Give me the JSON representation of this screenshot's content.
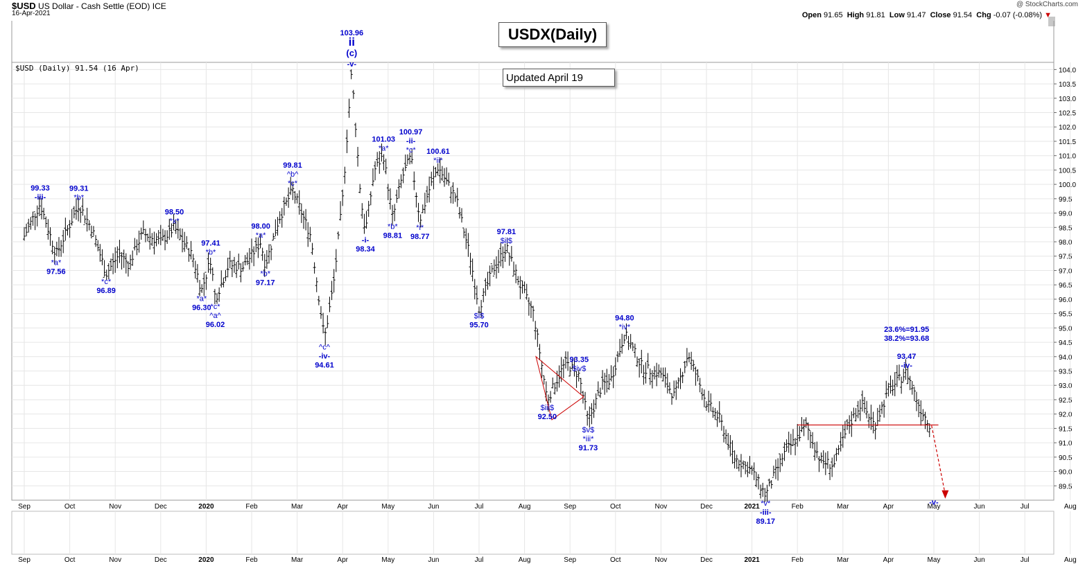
{
  "header": {
    "symbol": "$USD",
    "name": "US Dollar - Cash Settle (EOD)",
    "exchange": "ICE",
    "date": "16-Apr-2021",
    "ohlc": {
      "open_label": "Open",
      "open": "91.65",
      "high_label": "High",
      "high": "91.81",
      "low_label": "Low",
      "low": "91.47",
      "close_label": "Close",
      "close": "91.54",
      "chg_label": "Chg",
      "chg": "-0.07 (-0.08%)"
    },
    "brand": "@ StockCharts.com"
  },
  "legend": {
    "text": "$USD (Daily) 91.54 (16 Apr)"
  },
  "boxes": {
    "title": "USDX(Daily)",
    "updated": "Updated April 19"
  },
  "colors": {
    "annotation": "#0000cc",
    "bars": "#000000",
    "line": "#cc0000",
    "grid": "#e6e6e6"
  },
  "chart_data": {
    "type": "line",
    "title": "USDX(Daily)",
    "price_axis": {
      "ylim": [
        89.0,
        104.25
      ],
      "ticks": [
        "89.5",
        "90.0",
        "90.5",
        "91.0",
        "91.5",
        "92.0",
        "92.5",
        "93.0",
        "93.5",
        "94.0",
        "94.5",
        "95.0",
        "95.5",
        "96.0",
        "96.5",
        "97.0",
        "97.5",
        "98.0",
        "98.5",
        "99.0",
        "99.5",
        "100.0",
        "100.5",
        "101.0",
        "101.5",
        "102.0",
        "102.5",
        "103.0",
        "103.5",
        "104.0"
      ]
    },
    "time_axis": {
      "labels": [
        "Sep",
        "Oct",
        "Nov",
        "Dec",
        "2020",
        "Feb",
        "Mar",
        "Apr",
        "May",
        "Jun",
        "Jul",
        "Aug",
        "Sep",
        "Oct",
        "Nov",
        "Dec",
        "2021",
        "Feb",
        "Mar",
        "Apr",
        "May",
        "Jun",
        "Jul",
        "Aug"
      ],
      "bold": [
        "2020",
        "2021"
      ],
      "months_numeric": [
        0,
        1,
        2,
        3,
        4,
        5,
        6,
        7,
        8,
        9,
        10,
        11,
        12,
        13,
        14,
        15,
        16,
        17,
        18,
        19,
        20,
        21,
        22,
        23
      ]
    },
    "series": [
      {
        "values_monthly_path": [
          [
            0.0,
            98.2
          ],
          [
            0.35,
            99.33
          ],
          [
            0.7,
            97.56
          ],
          [
            1.0,
            98.6
          ],
          [
            1.2,
            99.31
          ],
          [
            1.5,
            98.4
          ],
          [
            1.8,
            96.89
          ],
          [
            2.1,
            97.6
          ],
          [
            2.3,
            97.2
          ],
          [
            2.6,
            98.3
          ],
          [
            3.0,
            98.0
          ],
          [
            3.3,
            98.5
          ],
          [
            3.7,
            97.5
          ],
          [
            3.9,
            96.3
          ],
          [
            4.1,
            97.41
          ],
          [
            4.2,
            96.02
          ],
          [
            4.5,
            97.2
          ],
          [
            4.8,
            97.1
          ],
          [
            5.2,
            98.0
          ],
          [
            5.3,
            97.17
          ],
          [
            5.6,
            98.8
          ],
          [
            5.9,
            99.81
          ],
          [
            6.3,
            98.2
          ],
          [
            6.6,
            94.61
          ],
          [
            6.8,
            96.5
          ],
          [
            7.0,
            99.5
          ],
          [
            7.2,
            103.96
          ],
          [
            7.4,
            99.5
          ],
          [
            7.5,
            98.34
          ],
          [
            7.7,
            100.5
          ],
          [
            7.9,
            101.03
          ],
          [
            8.1,
            98.81
          ],
          [
            8.3,
            100.2
          ],
          [
            8.5,
            100.97
          ],
          [
            8.7,
            98.77
          ],
          [
            8.9,
            99.8
          ],
          [
            9.1,
            100.61
          ],
          [
            9.5,
            99.5
          ],
          [
            9.8,
            97.5
          ],
          [
            10.0,
            95.7
          ],
          [
            10.3,
            97.0
          ],
          [
            10.6,
            97.81
          ],
          [
            10.9,
            96.5
          ],
          [
            11.2,
            95.5
          ],
          [
            11.5,
            92.5
          ],
          [
            11.9,
            93.8
          ],
          [
            12.2,
            93.35
          ],
          [
            12.4,
            91.73
          ],
          [
            12.7,
            93.0
          ],
          [
            12.9,
            93.2
          ],
          [
            13.2,
            94.8
          ],
          [
            13.6,
            93.6
          ],
          [
            14.0,
            93.4
          ],
          [
            14.3,
            92.6
          ],
          [
            14.6,
            94.1
          ],
          [
            15.0,
            92.4
          ],
          [
            15.3,
            91.8
          ],
          [
            15.6,
            90.5
          ],
          [
            16.0,
            90.0
          ],
          [
            16.3,
            89.17
          ],
          [
            16.7,
            90.6
          ],
          [
            17.2,
            91.6
          ],
          [
            17.5,
            90.4
          ],
          [
            17.8,
            90.2
          ],
          [
            18.1,
            91.5
          ],
          [
            18.4,
            92.4
          ],
          [
            18.7,
            91.6
          ],
          [
            19.0,
            92.8
          ],
          [
            19.4,
            93.47
          ],
          [
            19.7,
            92.2
          ],
          [
            19.95,
            91.54
          ]
        ]
      }
    ],
    "annotations": [
      {
        "t": 0.35,
        "y": 99.33,
        "lines": [
          "99.33",
          "-iii-"
        ],
        "pos": "above"
      },
      {
        "t": 0.7,
        "y": 97.56,
        "lines": [
          "*a*",
          "97.56"
        ],
        "pos": "below"
      },
      {
        "t": 1.2,
        "y": 99.31,
        "lines": [
          "99.31",
          "*b*"
        ],
        "pos": "above"
      },
      {
        "t": 1.8,
        "y": 96.89,
        "lines": [
          "*c*",
          "96.89"
        ],
        "pos": "below"
      },
      {
        "t": 3.3,
        "y": 98.5,
        "lines": [
          "98.50",
          "*x*"
        ],
        "pos": "above"
      },
      {
        "t": 3.9,
        "y": 96.3,
        "lines": [
          "*a*",
          "96.30"
        ],
        "pos": "below"
      },
      {
        "t": 4.1,
        "y": 97.41,
        "lines": [
          "97.41",
          "*b*"
        ],
        "pos": "above"
      },
      {
        "t": 4.2,
        "y": 96.02,
        "lines": [
          "*c*",
          "^a^",
          "96.02"
        ],
        "pos": "below"
      },
      {
        "t": 5.2,
        "y": 98.0,
        "lines": [
          "98.00",
          "*a*"
        ],
        "pos": "above"
      },
      {
        "t": 5.3,
        "y": 97.17,
        "lines": [
          "*b*",
          "97.17"
        ],
        "pos": "below"
      },
      {
        "t": 5.9,
        "y": 99.81,
        "lines": [
          "99.81",
          "^b^",
          "*c*"
        ],
        "pos": "above"
      },
      {
        "t": 6.6,
        "y": 94.61,
        "lines": [
          "^c^",
          "-iv-",
          "94.61"
        ],
        "pos": "below"
      },
      {
        "t": 7.2,
        "y": 103.96,
        "lines": [
          "103.96",
          "ii",
          "(c)",
          "-v-"
        ],
        "pos": "above",
        "big": true
      },
      {
        "t": 7.5,
        "y": 98.34,
        "lines": [
          "-i-",
          "98.34"
        ],
        "pos": "below"
      },
      {
        "t": 7.9,
        "y": 101.03,
        "lines": [
          "101.03",
          "*a*"
        ],
        "pos": "above"
      },
      {
        "t": 8.1,
        "y": 98.81,
        "lines": [
          "*b*",
          "98.81"
        ],
        "pos": "below"
      },
      {
        "t": 8.5,
        "y": 100.97,
        "lines": [
          "100.97",
          "-ii-",
          "*c*"
        ],
        "pos": "above"
      },
      {
        "t": 8.7,
        "y": 98.77,
        "lines": [
          "*i*",
          "98.77"
        ],
        "pos": "below"
      },
      {
        "t": 9.1,
        "y": 100.61,
        "lines": [
          "100.61",
          "*ii*"
        ],
        "pos": "above"
      },
      {
        "t": 10.0,
        "y": 95.7,
        "lines": [
          "$i$",
          "95.70"
        ],
        "pos": "below"
      },
      {
        "t": 10.6,
        "y": 97.81,
        "lines": [
          "97.81",
          "$ii$"
        ],
        "pos": "above"
      },
      {
        "t": 11.5,
        "y": 92.5,
        "lines": [
          "$iii$",
          "92.50"
        ],
        "pos": "below"
      },
      {
        "t": 12.2,
        "y": 93.35,
        "lines": [
          "93.35",
          "$iv$"
        ],
        "pos": "above"
      },
      {
        "t": 12.4,
        "y": 91.73,
        "lines": [
          "$v$",
          "*iii*",
          "91.73"
        ],
        "pos": "below"
      },
      {
        "t": 13.2,
        "y": 94.8,
        "lines": [
          "94.80",
          "*iv*"
        ],
        "pos": "above"
      },
      {
        "t": 16.3,
        "y": 89.17,
        "lines": [
          "*v*",
          "-iii-",
          "89.17"
        ],
        "pos": "below"
      },
      {
        "t": 19.4,
        "y": 93.47,
        "lines": [
          "23.6%=91.95",
          "38.2%=93.68",
          "",
          "93.47",
          "-iv-"
        ],
        "pos": "above"
      },
      {
        "t": 20.0,
        "y": 89.2,
        "lines": [
          "-v-"
        ],
        "pos": "below"
      }
    ],
    "support_line": {
      "t0": 17.0,
      "t1": 20.1,
      "y": 91.62
    },
    "triangle": [
      [
        11.25,
        94.0
      ],
      [
        12.3,
        92.6
      ],
      [
        11.6,
        91.8
      ]
    ],
    "projection": {
      "from": [
        19.95,
        91.6
      ],
      "to": [
        20.25,
        89.2
      ]
    }
  }
}
